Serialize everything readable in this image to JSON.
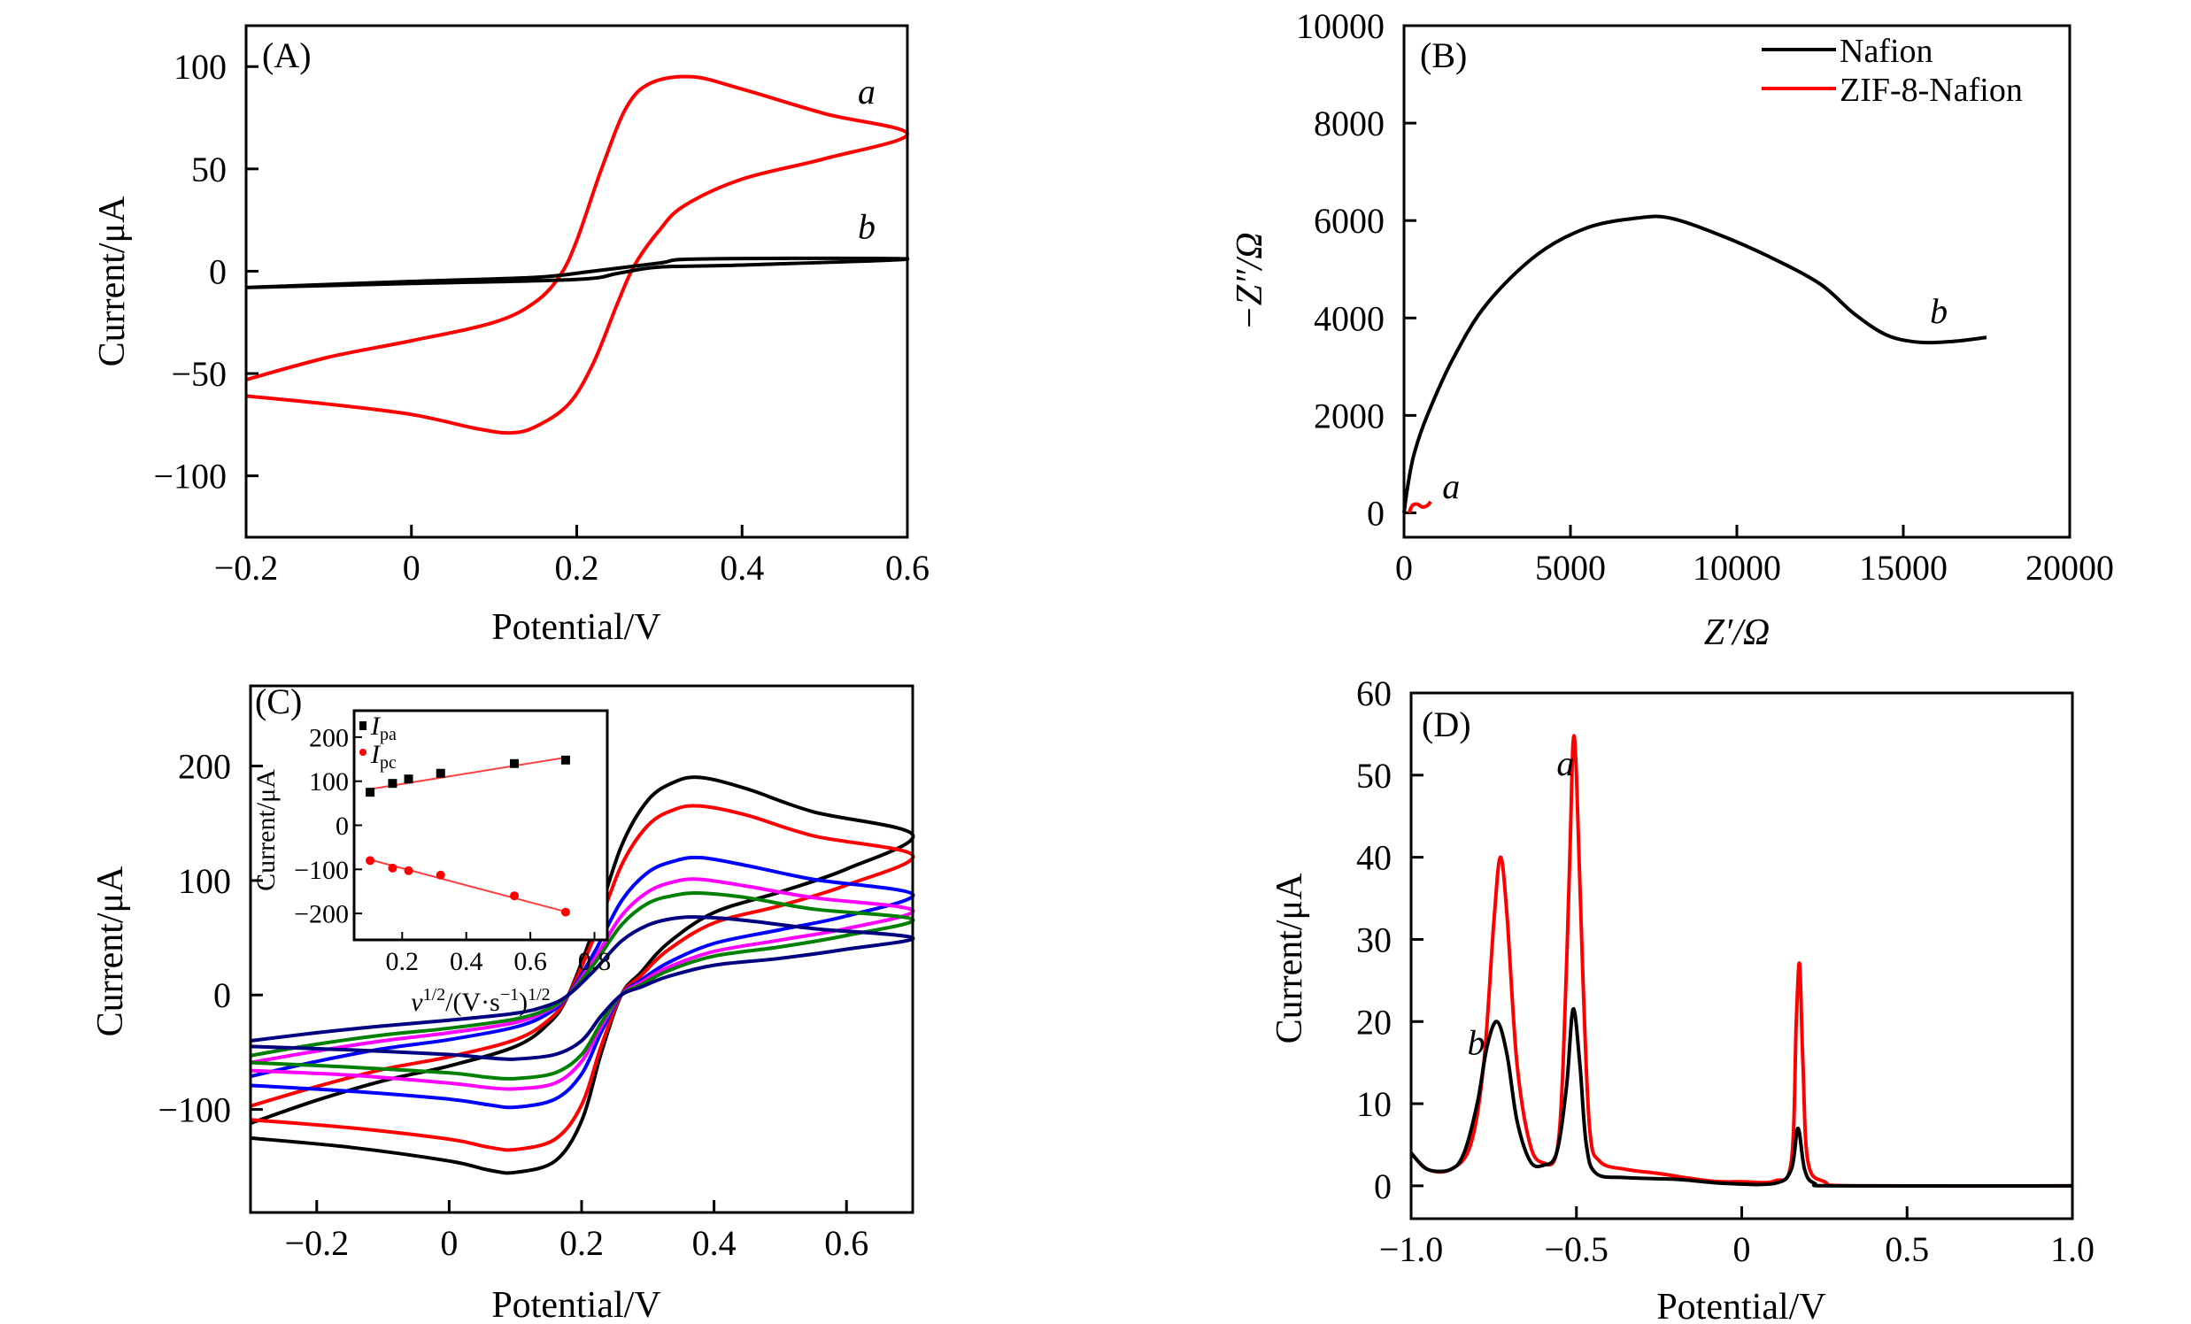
{
  "chart_data": [
    {
      "id": "A",
      "type": "line",
      "panel_label": "(A)",
      "xlabel": "Potential/V",
      "ylabel": "Current/μA",
      "xlim": [
        -0.2,
        0.6
      ],
      "ylim": [
        -130,
        120
      ],
      "xticks": [
        -0.2,
        0,
        0.2,
        0.4,
        0.6
      ],
      "xtick_labels": [
        "−0.2",
        "0",
        "0.2",
        "0.4",
        "0.6"
      ],
      "yticks": [
        -100,
        -50,
        0,
        50,
        100
      ],
      "ytick_labels": [
        "−100",
        "−50",
        "0",
        "50",
        "100"
      ],
      "series": [
        {
          "label": "a",
          "color": "#ff0000",
          "points": [
            [
              -0.2,
              -53
            ],
            [
              -0.1,
              -42
            ],
            [
              0,
              -34
            ],
            [
              0.1,
              -25
            ],
            [
              0.15,
              -15
            ],
            [
              0.18,
              -2
            ],
            [
              0.2,
              15
            ],
            [
              0.23,
              50
            ],
            [
              0.26,
              80
            ],
            [
              0.29,
              92
            ],
            [
              0.34,
              95
            ],
            [
              0.4,
              89
            ],
            [
              0.5,
              77
            ],
            [
              0.6,
              67
            ],
            [
              0.5,
              55
            ],
            [
              0.4,
              45
            ],
            [
              0.33,
              32
            ],
            [
              0.3,
              20
            ],
            [
              0.27,
              3
            ],
            [
              0.25,
              -15
            ],
            [
              0.22,
              -45
            ],
            [
              0.19,
              -65
            ],
            [
              0.15,
              -76
            ],
            [
              0.12,
              -79
            ],
            [
              0.08,
              -77
            ],
            [
              0,
              -70
            ],
            [
              -0.1,
              -65
            ],
            [
              -0.2,
              -61
            ]
          ]
        },
        {
          "label": "b",
          "color": "#000000",
          "points": [
            [
              -0.2,
              -8
            ],
            [
              0,
              -5
            ],
            [
              0.15,
              -3
            ],
            [
              0.22,
              0
            ],
            [
              0.3,
              4
            ],
            [
              0.35,
              6
            ],
            [
              0.6,
              6
            ],
            [
              0.4,
              3
            ],
            [
              0.3,
              2
            ],
            [
              0.25,
              -1
            ],
            [
              0.2,
              -4
            ],
            [
              0,
              -6
            ],
            [
              -0.2,
              -8
            ]
          ]
        }
      ],
      "annotations": [
        {
          "text": "a",
          "x": 0.54,
          "y": 82
        },
        {
          "text": "b",
          "x": 0.54,
          "y": 16
        }
      ]
    },
    {
      "id": "B",
      "type": "line",
      "panel_label": "(B)",
      "xlabel": "Z′/Ω",
      "ylabel": "−Z″/Ω",
      "xlim": [
        0,
        20000
      ],
      "ylim": [
        -500,
        10000
      ],
      "xticks": [
        0,
        5000,
        10000,
        15000,
        20000
      ],
      "xtick_labels": [
        "0",
        "5000",
        "10000",
        "15000",
        "20000"
      ],
      "yticks": [
        0,
        2000,
        4000,
        6000,
        8000,
        10000
      ],
      "ytick_labels": [
        "0",
        "2000",
        "4000",
        "6000",
        "8000",
        "10000"
      ],
      "legend": {
        "position": "top-right",
        "entries": [
          {
            "name": "Nafion",
            "color": "#000000"
          },
          {
            "name": "ZIF-8-Nafion",
            "color": "#ff0000"
          }
        ]
      },
      "series": [
        {
          "name": "Nafion",
          "label": "b",
          "color": "#000000",
          "points": [
            [
              0,
              0
            ],
            [
              100,
              500
            ],
            [
              300,
              1200
            ],
            [
              700,
              2000
            ],
            [
              1500,
              3200
            ],
            [
              2500,
              4300
            ],
            [
              4000,
              5300
            ],
            [
              5500,
              5850
            ],
            [
              7000,
              6050
            ],
            [
              8000,
              6050
            ],
            [
              9500,
              5700
            ],
            [
              11000,
              5250
            ],
            [
              12500,
              4700
            ],
            [
              13500,
              4100
            ],
            [
              14500,
              3650
            ],
            [
              15500,
              3500
            ],
            [
              16500,
              3520
            ],
            [
              17500,
              3600
            ]
          ]
        },
        {
          "name": "ZIF-8-Nafion",
          "label": "a",
          "color": "#ff0000",
          "points": [
            [
              150,
              0
            ],
            [
              250,
              150
            ],
            [
              400,
              180
            ],
            [
              550,
              120
            ],
            [
              700,
              150
            ],
            [
              800,
              230
            ]
          ]
        }
      ],
      "annotations": [
        {
          "text": "a",
          "x": 1150,
          "y": 300
        },
        {
          "text": "b",
          "x": 15800,
          "y": 3900
        }
      ]
    },
    {
      "id": "C",
      "type": "line",
      "panel_label": "(C)",
      "xlabel": "Potential/V",
      "ylabel": "Current/μA",
      "xlim": [
        -0.3,
        0.7
      ],
      "ylim": [
        -190,
        270
      ],
      "xticks": [
        -0.2,
        0,
        0.2,
        0.4,
        0.6
      ],
      "xtick_labels": [
        "−0.2",
        "0",
        "0.2",
        "0.4",
        "0.6"
      ],
      "yticks": [
        -100,
        0,
        100,
        200
      ],
      "ytick_labels": [
        "−100",
        "0",
        "100",
        "200"
      ],
      "x_forward": [
        -0.3,
        -0.2,
        -0.1,
        0,
        0.1,
        0.15,
        0.18,
        0.22,
        0.26,
        0.3,
        0.34,
        0.38,
        0.45,
        0.55,
        0.7
      ],
      "x_reverse": [
        0.7,
        0.6,
        0.5,
        0.4,
        0.33,
        0.29,
        0.26,
        0.23,
        0.2,
        0.16,
        0.1,
        0.06,
        0,
        -0.15,
        -0.3
      ],
      "series": [
        {
          "color": "#000000",
          "forward": [
            -112,
            -92,
            -75,
            -62,
            -45,
            -25,
            0,
            60,
            130,
            170,
            186,
            190,
            180,
            160,
            140
          ],
          "reverse": [
            135,
            110,
            90,
            72,
            45,
            20,
            0,
            -50,
            -110,
            -145,
            -155,
            -153,
            -145,
            -133,
            -125
          ]
        },
        {
          "color": "#ff0000",
          "forward": [
            -97,
            -80,
            -65,
            -54,
            -39,
            -22,
            0,
            52,
            113,
            148,
            162,
            165,
            157,
            139,
            122
          ],
          "reverse": [
            117,
            96,
            78,
            63,
            39,
            17,
            0,
            -44,
            -96,
            -126,
            -135,
            -133,
            -126,
            -116,
            -109
          ]
        },
        {
          "color": "#0000ff",
          "forward": [
            -71,
            -58,
            -47,
            -39,
            -28,
            -16,
            0,
            38,
            82,
            107,
            117,
            120,
            113,
            101,
            88
          ],
          "reverse": [
            85,
            69,
            57,
            45,
            28,
            13,
            0,
            -32,
            -69,
            -91,
            -98,
            -96,
            -91,
            -84,
            -79
          ]
        },
        {
          "color": "#ff00ff",
          "forward": [
            -59,
            -49,
            -40,
            -33,
            -24,
            -13,
            0,
            32,
            69,
            90,
            99,
            101,
            95,
            85,
            74
          ],
          "reverse": [
            72,
            58,
            48,
            38,
            24,
            11,
            0,
            -27,
            -58,
            -77,
            -82,
            -81,
            -77,
            -70,
            -66
          ]
        },
        {
          "color": "#008000",
          "forward": [
            -53,
            -43,
            -35,
            -29,
            -21,
            -12,
            0,
            28,
            61,
            80,
            87,
            89,
            85,
            75,
            66
          ],
          "reverse": [
            63,
            52,
            42,
            34,
            21,
            9,
            0,
            -24,
            -52,
            -68,
            -73,
            -72,
            -68,
            -63,
            -59
          ]
        },
        {
          "color": "#000080",
          "forward": [
            -40,
            -33,
            -27,
            -22,
            -16,
            -9,
            0,
            22,
            47,
            61,
            67,
            68,
            65,
            58,
            50
          ],
          "reverse": [
            49,
            40,
            32,
            26,
            16,
            7,
            0,
            -18,
            -40,
            -52,
            -56,
            -55,
            -52,
            -48,
            -45
          ]
        }
      ],
      "inset": {
        "type": "scatter",
        "ylabel": "Current/μA",
        "xlabel_parts": [
          "v",
          "1/2",
          "/(V·s",
          "−1",
          ")",
          "1/2"
        ],
        "xlim": [
          0.05,
          0.84
        ],
        "ylim": [
          -260,
          260
        ],
        "xticks": [
          0.2,
          0.4,
          0.6,
          0.8
        ],
        "xtick_labels": [
          "0.2",
          "0.4",
          "0.6",
          "0.8"
        ],
        "yticks": [
          -200,
          -100,
          0,
          100,
          200
        ],
        "ytick_labels": [
          "−200",
          "−100",
          "0",
          "100",
          "200"
        ],
        "legend": {
          "position": "top-left",
          "entries": [
            {
              "main": "I",
              "sub": "pa",
              "color": "#000000",
              "marker": "square"
            },
            {
              "main": "I",
              "sub": "pc",
              "color": "#ff0000",
              "marker": "circle"
            }
          ]
        },
        "x": [
          0.1,
          0.17,
          0.22,
          0.32,
          0.55,
          0.71
        ],
        "series": [
          {
            "name": "Ipa",
            "color": "#000000",
            "marker": "square",
            "values": [
              75,
              95,
              105,
              118,
              140,
              148
            ],
            "fit": [
              [
                0.1,
                82
              ],
              [
                0.72,
                155
              ]
            ],
            "fit_color": "#ff4040"
          },
          {
            "name": "Ipc",
            "color": "#ff0000",
            "marker": "circle",
            "values": [
              -80,
              -97,
              -103,
              -113,
              -160,
              -197
            ],
            "fit": [
              [
                0.1,
                -78
              ],
              [
                0.72,
                -198
              ]
            ],
            "fit_color": "#ff4040"
          }
        ]
      }
    },
    {
      "id": "D",
      "type": "line",
      "panel_label": "(D)",
      "xlabel": "Potential/V",
      "ylabel": "Current/μA",
      "xlim": [
        -1.0,
        1.0
      ],
      "ylim": [
        -4,
        60
      ],
      "xticks": [
        -1.0,
        -0.5,
        0,
        0.5,
        1.0
      ],
      "xtick_labels": [
        "−1.0",
        "−0.5",
        "0",
        "0.5",
        "1.0"
      ],
      "yticks": [
        0,
        10,
        20,
        30,
        40,
        50,
        60
      ],
      "ytick_labels": [
        "0",
        "10",
        "20",
        "30",
        "40",
        "50",
        "60"
      ],
      "series": [
        {
          "label": "a",
          "color": "#ff0000",
          "points": [
            [
              -1,
              4
            ],
            [
              -0.95,
              2
            ],
            [
              -0.88,
              2
            ],
            [
              -0.82,
              5
            ],
            [
              -0.78,
              15
            ],
            [
              -0.75,
              32
            ],
            [
              -0.73,
              40
            ],
            [
              -0.71,
              33
            ],
            [
              -0.68,
              15
            ],
            [
              -0.64,
              5
            ],
            [
              -0.6,
              2.8
            ],
            [
              -0.56,
              4
            ],
            [
              -0.54,
              15
            ],
            [
              -0.52,
              40
            ],
            [
              -0.51,
              54
            ],
            [
              -0.5,
              50
            ],
            [
              -0.48,
              25
            ],
            [
              -0.46,
              7
            ],
            [
              -0.43,
              3
            ],
            [
              -0.35,
              2
            ],
            [
              -0.25,
              1.5
            ],
            [
              -0.1,
              0.6
            ],
            [
              0,
              0.5
            ],
            [
              0.1,
              0.6
            ],
            [
              0.15,
              3
            ],
            [
              0.165,
              20
            ],
            [
              0.175,
              27
            ],
            [
              0.185,
              15
            ],
            [
              0.2,
              3
            ],
            [
              0.25,
              0.5
            ],
            [
              0.35,
              0
            ],
            [
              1,
              0
            ]
          ]
        },
        {
          "label": "b",
          "color": "#000000",
          "points": [
            [
              -1,
              4
            ],
            [
              -0.95,
              2
            ],
            [
              -0.88,
              2
            ],
            [
              -0.84,
              4
            ],
            [
              -0.8,
              10
            ],
            [
              -0.77,
              17
            ],
            [
              -0.74,
              20
            ],
            [
              -0.71,
              16
            ],
            [
              -0.68,
              8
            ],
            [
              -0.64,
              3
            ],
            [
              -0.6,
              2.5
            ],
            [
              -0.56,
              4
            ],
            [
              -0.53,
              12
            ],
            [
              -0.51,
              21.5
            ],
            [
              -0.49,
              15
            ],
            [
              -0.47,
              5
            ],
            [
              -0.44,
              1.5
            ],
            [
              -0.35,
              1
            ],
            [
              -0.2,
              0.8
            ],
            [
              -0.05,
              0.3
            ],
            [
              0.1,
              0.3
            ],
            [
              0.15,
              2
            ],
            [
              0.17,
              7
            ],
            [
              0.19,
              2
            ],
            [
              0.22,
              0.3
            ],
            [
              0.3,
              0
            ],
            [
              1,
              0
            ]
          ]
        }
      ],
      "annotations": [
        {
          "text": "a",
          "x": -0.56,
          "y": 50
        },
        {
          "text": "b",
          "x": -0.83,
          "y": 16
        }
      ]
    }
  ]
}
